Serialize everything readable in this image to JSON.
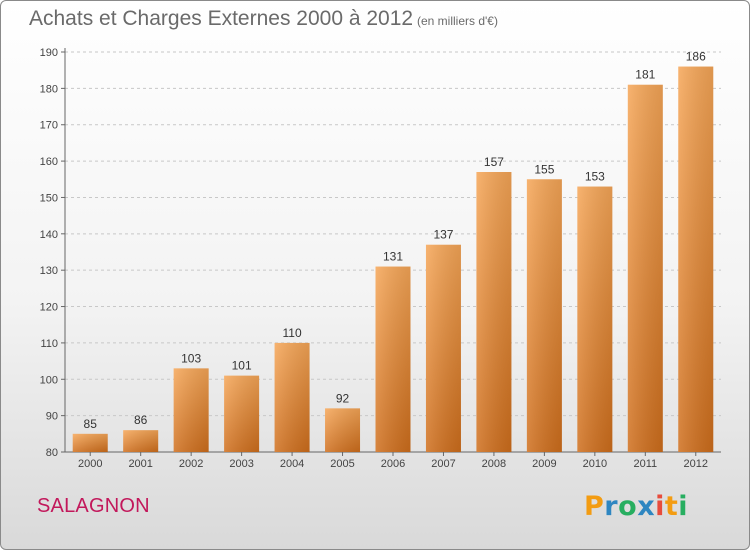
{
  "header": {
    "title": "Achats et Charges Externes 2000 à 2012",
    "subtitle": "(en milliers d'€)"
  },
  "footer": {
    "commune": "SALAGNON",
    "logo": {
      "letters": [
        "P",
        "r",
        "o",
        "x",
        "i",
        "t",
        "i"
      ],
      "colors": [
        "#f39c12",
        "#2e86c1",
        "#27ae60",
        "#2e86c1",
        "#e74c3c",
        "#f39c12",
        "#27ae60"
      ]
    }
  },
  "chart_data": {
    "type": "bar",
    "categories": [
      "2000",
      "2001",
      "2002",
      "2003",
      "2004",
      "2005",
      "2006",
      "2007",
      "2008",
      "2009",
      "2010",
      "2011",
      "2012"
    ],
    "values": [
      85,
      86,
      103,
      101,
      110,
      92,
      131,
      137,
      157,
      155,
      153,
      181,
      186
    ],
    "ylim": [
      80,
      190
    ],
    "yticks": [
      80,
      90,
      100,
      110,
      120,
      130,
      140,
      150,
      160,
      170,
      180,
      190
    ],
    "grid": true,
    "bar_color_top": "#f6a657",
    "bar_color_bottom": "#cf6e1c"
  }
}
